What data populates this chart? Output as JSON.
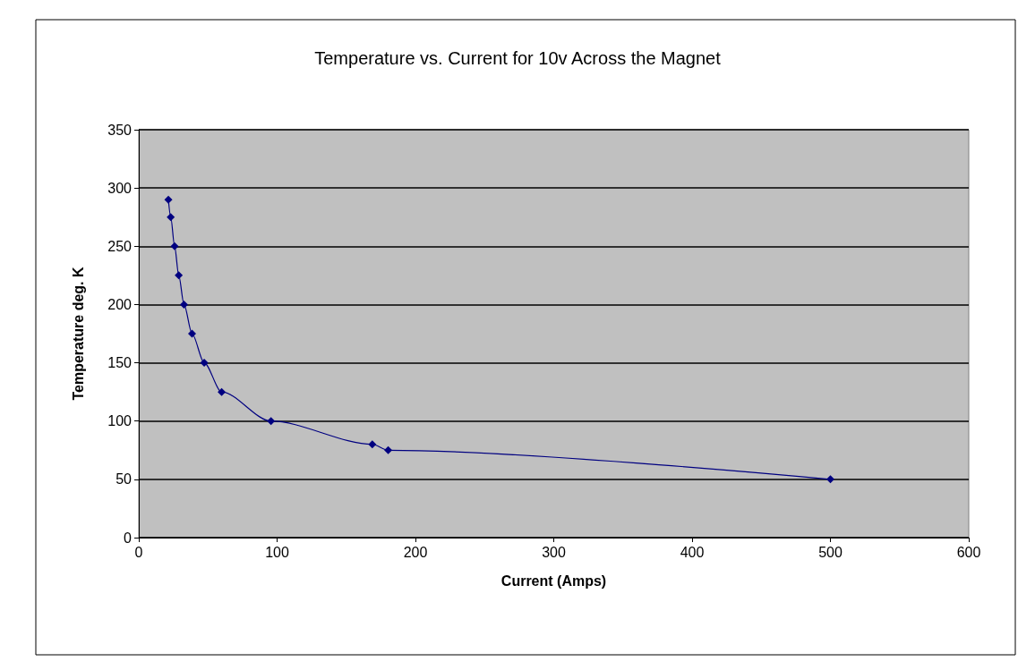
{
  "chart_data": {
    "type": "line",
    "title": "Temperature vs. Current for 10v Across the Magnet",
    "xlabel": "Current (Amps)",
    "ylabel": "Temperature deg. K",
    "x": [
      21.4,
      23.1,
      25.9,
      28.9,
      32.7,
      38.5,
      47.3,
      59.9,
      95.6,
      168.8,
      180.3,
      500
    ],
    "series": [
      {
        "color": "#000080",
        "values": [
          290,
          275,
          250,
          225,
          200,
          175,
          150,
          125,
          100,
          80,
          75,
          50
        ]
      }
    ],
    "xlim": [
      0,
      600
    ],
    "xticks": [
      0,
      100,
      200,
      300,
      400,
      500,
      600
    ],
    "ylim": [
      0,
      350
    ],
    "yticks": [
      0,
      50,
      100,
      150,
      200,
      250,
      300,
      350
    ],
    "grid": "y",
    "marker": "diamond",
    "line_style": "solid"
  }
}
